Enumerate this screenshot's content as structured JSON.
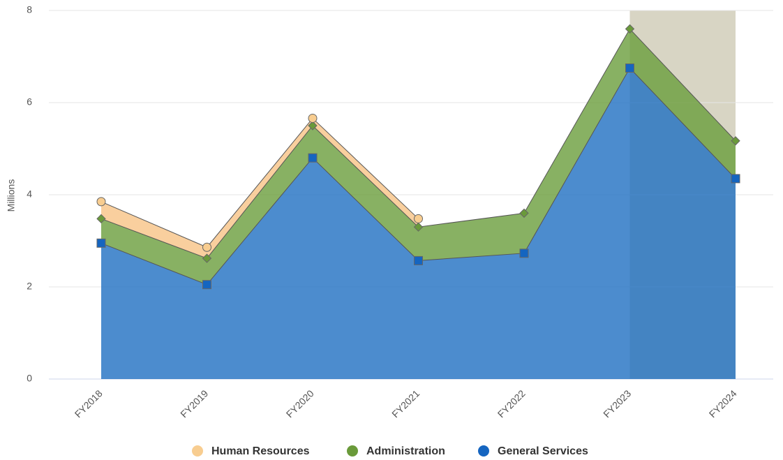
{
  "chart_data": {
    "type": "stacked_area",
    "categories": [
      "FY2018",
      "FY2019",
      "FY2020",
      "FY2021",
      "FY2022",
      "FY2023",
      "FY2024"
    ],
    "ylabel": "Millions",
    "ylim": [
      0,
      8
    ],
    "yticks": [
      0,
      2,
      4,
      6,
      8
    ],
    "grid": true,
    "legend": "bottom",
    "plot_band": {
      "from": "FY2023",
      "to": "FY2024",
      "color": "#d8d5c4"
    },
    "series": [
      {
        "name": "General Services",
        "color": "#1565c0",
        "fill": "#1f6fc2",
        "marker": "square",
        "values": [
          2.95,
          2.05,
          4.8,
          2.57,
          2.73,
          6.75,
          4.35
        ]
      },
      {
        "name": "Administration",
        "color": "#6a9a3a",
        "fill": "#6a9e3c",
        "marker": "diamond",
        "values": [
          0.53,
          0.57,
          0.7,
          0.73,
          0.87,
          0.85,
          0.82
        ]
      },
      {
        "name": "Human Resources",
        "color": "#f8cd90",
        "fill": "#f7c386",
        "marker": "circle",
        "values": [
          0.37,
          0.24,
          0.16,
          0.18,
          null,
          null,
          null
        ]
      }
    ]
  }
}
